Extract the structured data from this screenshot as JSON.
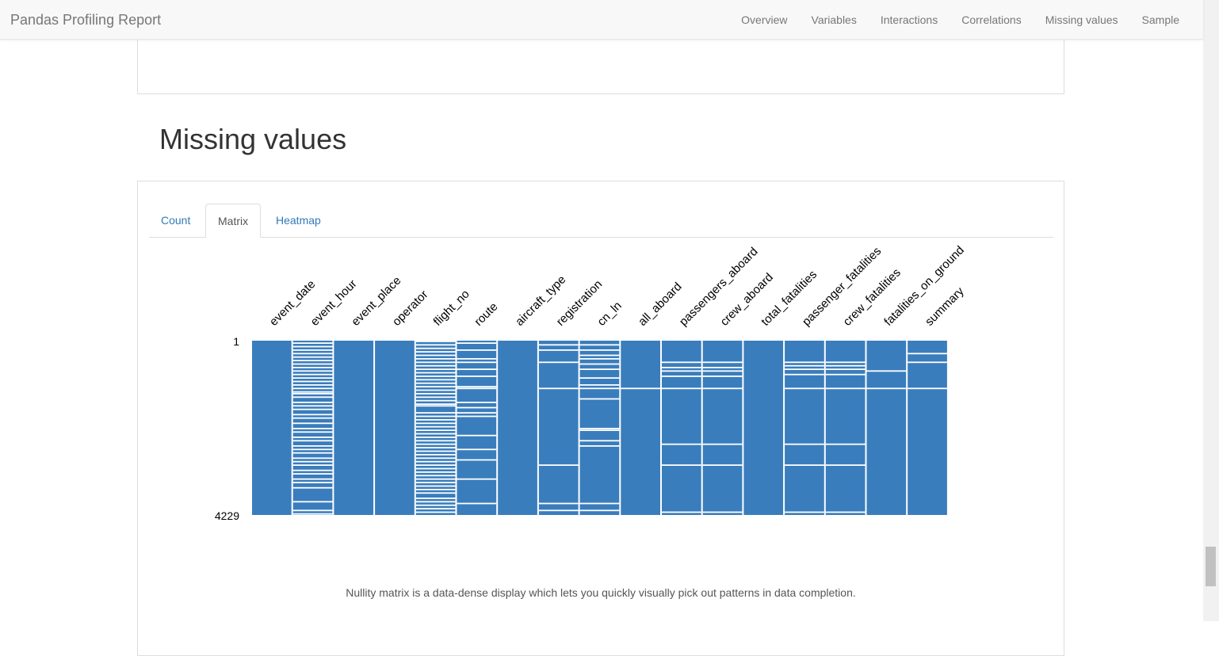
{
  "navbar": {
    "brand": "Pandas Profiling Report",
    "links": [
      "Overview",
      "Variables",
      "Interactions",
      "Correlations",
      "Missing values",
      "Sample"
    ]
  },
  "section": {
    "title": "Missing values"
  },
  "tabs": [
    {
      "label": "Count",
      "active": false
    },
    {
      "label": "Matrix",
      "active": true
    },
    {
      "label": "Heatmap",
      "active": false
    }
  ],
  "caption": "Nullity matrix is a data-dense display which lets you quickly visually pick out patterns in data completion.",
  "chart_data": {
    "type": "heatmap",
    "description_type": "nullity matrix",
    "color": "#3a7dbc",
    "missing_color": "#ffffff",
    "row_range": [
      1,
      4229
    ],
    "row_tick_labels": [
      "1",
      "4229"
    ],
    "columns": [
      {
        "name": "event_date",
        "missing_fractions": []
      },
      {
        "name": "event_hour",
        "missing_fractions": [
          0.01,
          0.03,
          0.05,
          0.07,
          0.09,
          0.11,
          0.13,
          0.15,
          0.17,
          0.19,
          0.21,
          0.23,
          0.25,
          0.27,
          0.29,
          0.3,
          0.32,
          0.35,
          0.37,
          0.39,
          0.42,
          0.44,
          0.47,
          0.5,
          0.52,
          0.55,
          0.57,
          0.6,
          0.62,
          0.64,
          0.67,
          0.69,
          0.71,
          0.74,
          0.76,
          0.79,
          0.81,
          0.84,
          0.92,
          0.97,
          0.99
        ]
      },
      {
        "name": "event_place",
        "missing_fractions": []
      },
      {
        "name": "operator",
        "missing_fractions": []
      },
      {
        "name": "flight_no",
        "missing_fractions": [
          0.0,
          0.02,
          0.04,
          0.06,
          0.08,
          0.1,
          0.12,
          0.14,
          0.16,
          0.18,
          0.2,
          0.22,
          0.24,
          0.26,
          0.28,
          0.3,
          0.32,
          0.34,
          0.36,
          0.37,
          0.41,
          0.43,
          0.45,
          0.47,
          0.49,
          0.51,
          0.53,
          0.55,
          0.57,
          0.59,
          0.61,
          0.63,
          0.65,
          0.67,
          0.69,
          0.71,
          0.73,
          0.75,
          0.77,
          0.79,
          0.81,
          0.83,
          0.85,
          0.87,
          0.9,
          0.92,
          0.94,
          0.96,
          0.98
        ]
      },
      {
        "name": "route",
        "missing_fractions": [
          0.01,
          0.05,
          0.1,
          0.12,
          0.16,
          0.2,
          0.26,
          0.27,
          0.35,
          0.38,
          0.41,
          0.43,
          0.54,
          0.62,
          0.68,
          0.79,
          0.93
        ]
      },
      {
        "name": "aircraft_type",
        "missing_fractions": []
      },
      {
        "name": "registration",
        "missing_fractions": [
          0.02,
          0.05,
          0.12,
          0.27,
          0.71,
          0.93,
          0.97
        ]
      },
      {
        "name": "cn_ln",
        "missing_fractions": [
          0.02,
          0.05,
          0.08,
          0.1,
          0.13,
          0.16,
          0.21,
          0.25,
          0.27,
          0.33,
          0.5,
          0.51,
          0.57,
          0.6,
          0.93,
          0.97
        ]
      },
      {
        "name": "all_aboard",
        "missing_fractions": [
          0.27
        ]
      },
      {
        "name": "passengers_aboard",
        "missing_fractions": [
          0.12,
          0.15,
          0.17,
          0.2,
          0.27,
          0.59,
          0.71,
          0.98
        ]
      },
      {
        "name": "crew_aboard",
        "missing_fractions": [
          0.12,
          0.15,
          0.17,
          0.2,
          0.27,
          0.59,
          0.71,
          0.98
        ]
      },
      {
        "name": "total_fatalities",
        "missing_fractions": []
      },
      {
        "name": "passenger_fatalities",
        "missing_fractions": [
          0.12,
          0.14,
          0.16,
          0.19,
          0.27,
          0.59,
          0.71,
          0.98
        ]
      },
      {
        "name": "crew_fatalities",
        "missing_fractions": [
          0.12,
          0.14,
          0.16,
          0.19,
          0.27,
          0.59,
          0.71,
          0.98
        ]
      },
      {
        "name": "fatalities_on_ground",
        "missing_fractions": [
          0.17,
          0.27
        ]
      },
      {
        "name": "summary",
        "missing_fractions": [
          0.07,
          0.12,
          0.27
        ]
      }
    ]
  }
}
